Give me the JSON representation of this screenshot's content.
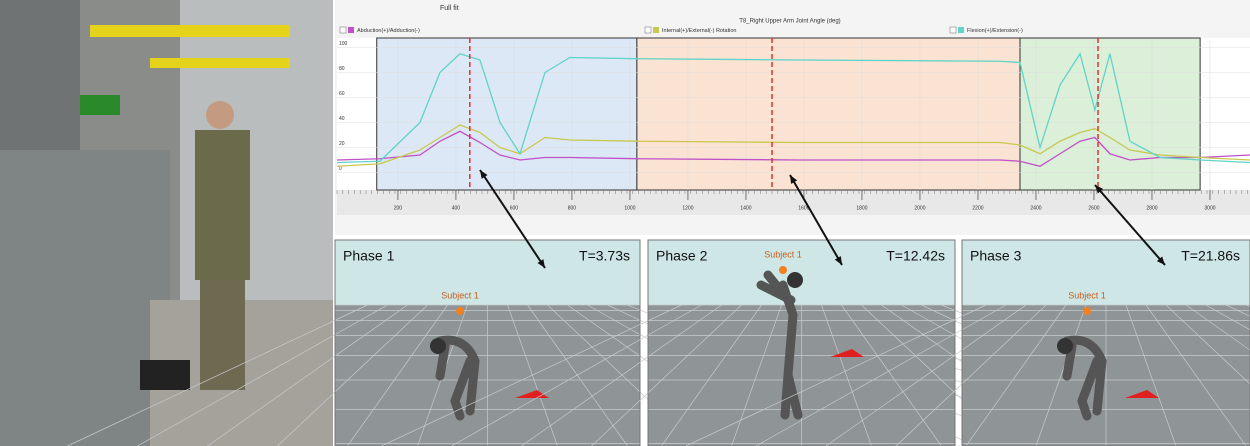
{
  "toolbar": {
    "zoom": "Full fit"
  },
  "chart_data": {
    "type": "line",
    "title": "T8_Right Upper Arm Joint Angle (deg)",
    "x": [
      -10,
      138,
      276,
      345,
      414,
      483,
      552,
      621,
      707,
      793,
      1034,
      1586,
      2276,
      2345,
      2414,
      2483,
      2552,
      2603,
      2655,
      2724,
      2828,
      2966,
      3138
    ],
    "series": [
      {
        "name": "Abduction(+)/Adduction(-)",
        "color": "#c050c8",
        "values": [
          10,
          11,
          14,
          25,
          33,
          24,
          14,
          10,
          12,
          12,
          11,
          10,
          10,
          9,
          5,
          15,
          25,
          28,
          15,
          10,
          12,
          12,
          14
        ]
      },
      {
        "name": "Internal(+)/External(-) Rotation",
        "color": "#c8c850",
        "values": [
          5,
          7,
          18,
          28,
          38,
          32,
          20,
          15,
          28,
          26,
          25,
          24,
          24,
          22,
          15,
          25,
          32,
          35,
          28,
          18,
          14,
          12,
          10
        ]
      },
      {
        "name": "Flexion(+)/Extension(-)",
        "color": "#5fd4c8",
        "values": [
          8,
          9,
          40,
          80,
          95,
          90,
          40,
          15,
          80,
          92,
          91,
          90,
          89,
          88,
          20,
          70,
          95,
          50,
          95,
          25,
          12,
          10,
          8
        ]
      }
    ],
    "regions": [
      {
        "start": 127,
        "end": 1024,
        "color": "#dce8f5"
      },
      {
        "start": 1024,
        "end": 2345,
        "color": "#fbe3d4"
      },
      {
        "start": 2345,
        "end": 2966,
        "color": "#dcefd8"
      }
    ],
    "markers": [
      448,
      1490,
      2614
    ],
    "xlim": [
      -10,
      3138
    ],
    "xticks": [
      200,
      400,
      600,
      800,
      1000,
      1200,
      1400,
      1600,
      1800,
      2000,
      2200,
      2400,
      2600,
      2800,
      3000
    ],
    "ylim": [
      -14,
      106
    ],
    "yticks": [
      0,
      20,
      40,
      60,
      80,
      100
    ],
    "grid": true
  },
  "panels": [
    {
      "title": "Phase 1",
      "time": "T=3.73s",
      "subject": "Subject 1"
    },
    {
      "title": "Phase 2",
      "time": "T=12.42s",
      "subject": "Subject 1"
    },
    {
      "title": "Phase 3",
      "time": "T=21.86s",
      "subject": "Subject 1"
    }
  ]
}
